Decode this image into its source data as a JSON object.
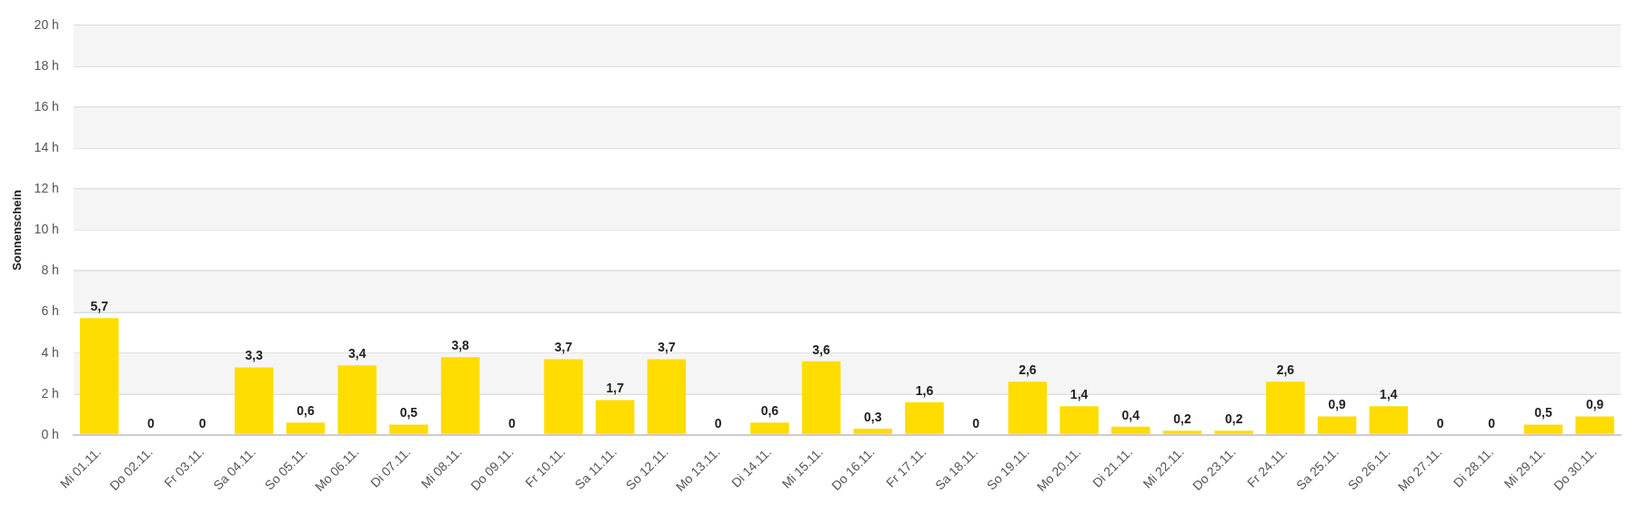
{
  "chart_data": {
    "type": "bar",
    "ylabel": "Sonnenschein",
    "categories": [
      "Mi 01.11.",
      "Do 02.11.",
      "Fr 03.11.",
      "Sa 04.11.",
      "So 05.11.",
      "Mo 06.11.",
      "Di 07.11.",
      "Mi 08.11.",
      "Do 09.11.",
      "Fr 10.11.",
      "Sa 11.11.",
      "So 12.11.",
      "Mo 13.11.",
      "Di 14.11.",
      "Mi 15.11.",
      "Do 16.11.",
      "Fr 17.11.",
      "Sa 18.11.",
      "So 19.11.",
      "Mo 20.11.",
      "Di 21.11.",
      "Mi 22.11.",
      "Do 23.11.",
      "Fr 24.11.",
      "Sa 25.11.",
      "So 26.11.",
      "Mo 27.11.",
      "Di 28.11.",
      "Mi 29.11.",
      "Do 30.11."
    ],
    "values": [
      5.7,
      0,
      0,
      3.3,
      0.6,
      3.4,
      0.5,
      3.8,
      0,
      3.7,
      1.7,
      3.7,
      0,
      0.6,
      3.6,
      0.3,
      1.6,
      0,
      2.6,
      1.4,
      0.4,
      0.2,
      0.2,
      2.6,
      0.9,
      1.4,
      0,
      0,
      0.5,
      0.9
    ],
    "value_labels": [
      "5,7",
      "0",
      "0",
      "3,3",
      "0,6",
      "3,4",
      "0,5",
      "3,8",
      "0",
      "3,7",
      "1,7",
      "3,7",
      "0",
      "0,6",
      "3,6",
      "0,3",
      "1,6",
      "0",
      "2,6",
      "1,4",
      "0,4",
      "0,2",
      "0,2",
      "2,6",
      "0,9",
      "1,4",
      "0",
      "0",
      "0,5",
      "0,9"
    ],
    "color": "#ffdd00",
    "ylim": [
      0,
      20
    ],
    "yticks": [
      {
        "value": 0,
        "label": "0 h"
      },
      {
        "value": 2,
        "label": "2 h"
      },
      {
        "value": 4,
        "label": "4 h"
      },
      {
        "value": 6,
        "label": "6 h"
      },
      {
        "value": 8,
        "label": "8 h"
      },
      {
        "value": 10,
        "label": "10 h"
      },
      {
        "value": 12,
        "label": "12 h"
      },
      {
        "value": 14,
        "label": "14 h"
      },
      {
        "value": 16,
        "label": "16 h"
      },
      {
        "value": 18,
        "label": "18 h"
      },
      {
        "value": 20,
        "label": "20 h"
      }
    ],
    "bands": [
      {
        "axis": "y",
        "from": 2,
        "to": 4,
        "color": "#f5f5f5"
      },
      {
        "axis": "y",
        "from": 6,
        "to": 8,
        "color": "#f5f5f5"
      },
      {
        "axis": "y",
        "from": 10,
        "to": 12,
        "color": "#f5f5f5"
      },
      {
        "axis": "y",
        "from": 14,
        "to": 16,
        "color": "#f5f5f5"
      },
      {
        "axis": "y",
        "from": 18,
        "to": 20,
        "color": "#f5f5f5"
      }
    ],
    "grid": "y",
    "legend": false
  }
}
